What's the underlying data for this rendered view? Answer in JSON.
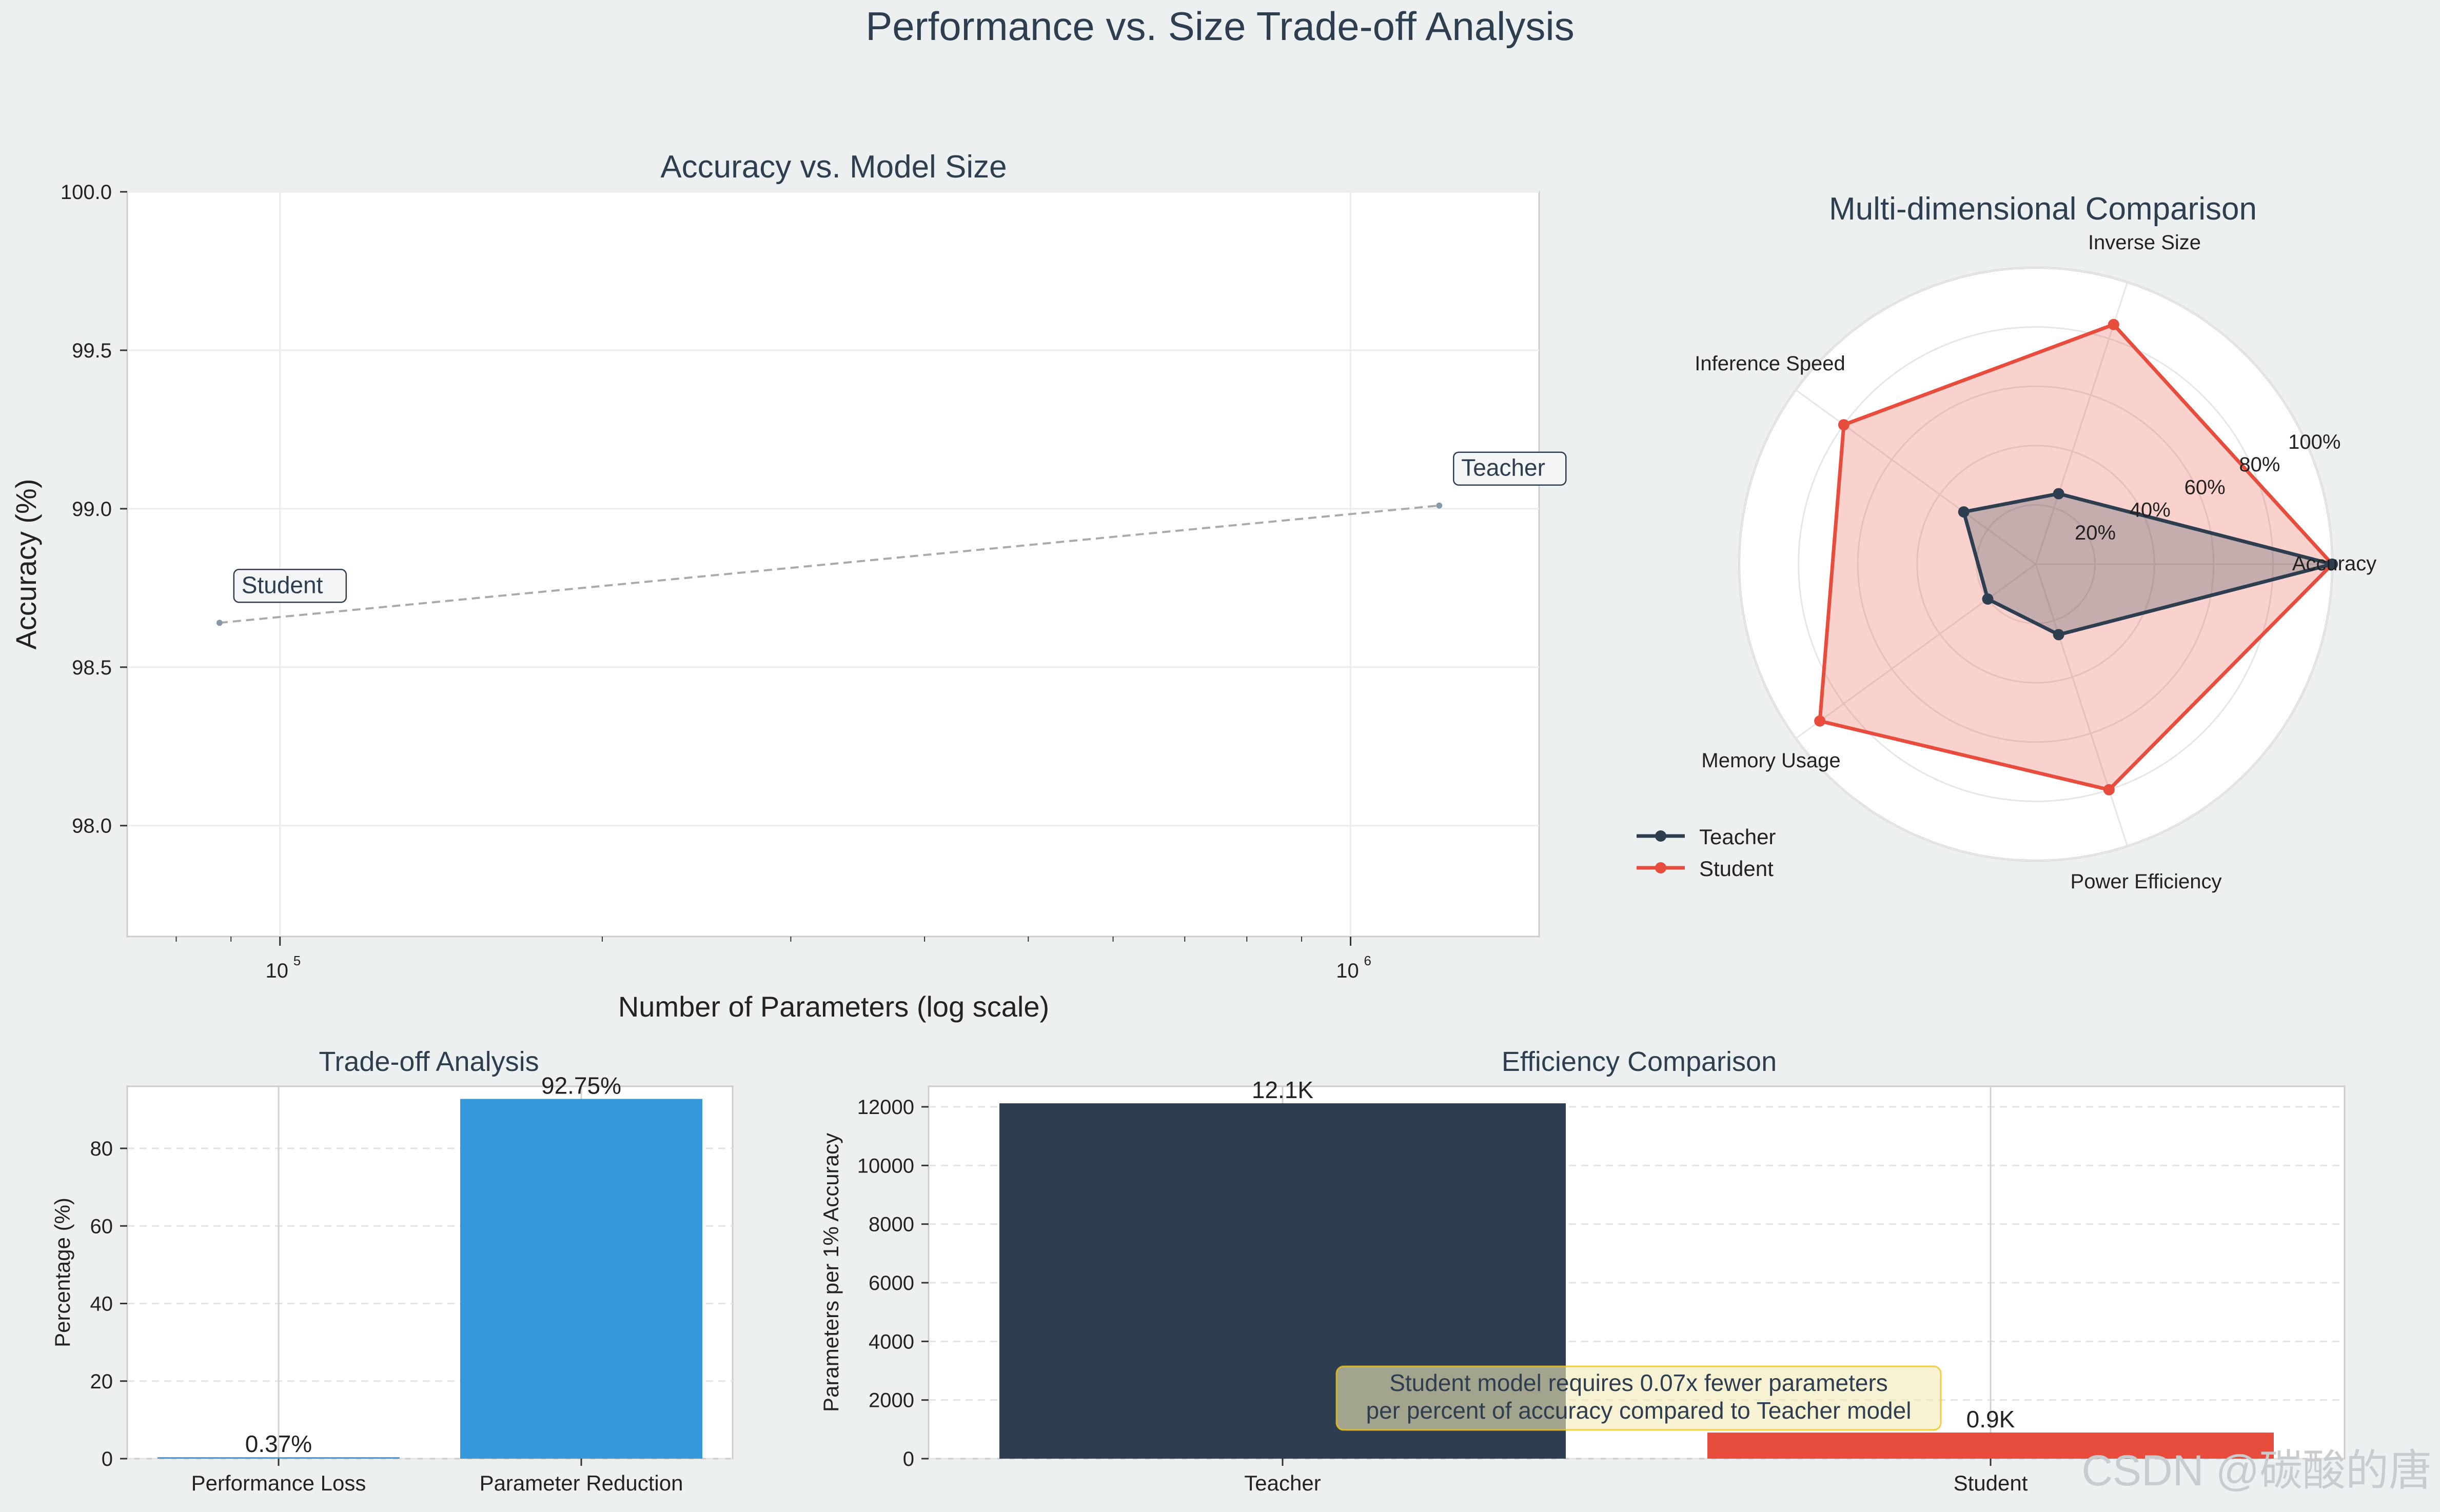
{
  "figure": {
    "title": "Performance vs. Size Trade-off Analysis",
    "background": "#ecf0f1",
    "watermark": "CSDN @碳酸的唐"
  },
  "colors": {
    "teacher": "#2c3e50",
    "student": "#e74c3c",
    "tradeoff_bar": "#3498db",
    "text": "#2c3e50",
    "annotation_bg": "#fdf3d6",
    "annotation_border": "#f1c40f"
  },
  "chart_data": [
    {
      "id": "accuracy_vs_size",
      "type": "scatter",
      "title": "Accuracy vs. Model Size",
      "xlabel": "Number of Parameters (log scale)",
      "ylabel": "Accuracy (%)",
      "xscale": "log",
      "xlim": [
        72000,
        1500000
      ],
      "ylim": [
        97.65,
        100.0
      ],
      "yticks": [
        98.0,
        98.5,
        99.0,
        99.5,
        100.0
      ],
      "ytick_labels": [
        "98.0",
        "98.5",
        "99.0",
        "99.5",
        "100.0"
      ],
      "xticks": [
        100000,
        1000000
      ],
      "xtick_labels": [
        "10",
        "10"
      ],
      "xtick_exponents": [
        "5",
        "6"
      ],
      "points": [
        {
          "label": "Teacher",
          "params": 1210000,
          "accuracy": 99.01
        },
        {
          "label": "Student",
          "params": 87800,
          "accuracy": 98.64
        }
      ],
      "connector": "dashed"
    },
    {
      "id": "radar",
      "type": "radar",
      "title": "Multi-dimensional Comparison",
      "axes": [
        "Accuracy",
        "Inverse Size",
        "Inference Speed",
        "Memory Usage",
        "Power Efficiency"
      ],
      "radial_ticks": [
        20,
        40,
        60,
        80,
        100
      ],
      "radial_tick_labels": [
        "20%",
        "40%",
        "60%",
        "80%",
        "100%"
      ],
      "series": [
        {
          "name": "Teacher",
          "values": [
            100,
            25,
            30,
            20,
            25
          ]
        },
        {
          "name": "Student",
          "values": [
            100,
            85,
            80,
            90,
            80
          ]
        }
      ],
      "legend": [
        "Teacher",
        "Student"
      ],
      "legend_position": "lower-left"
    },
    {
      "id": "tradeoff",
      "type": "bar",
      "title": "Trade-off Analysis",
      "ylabel": "Percentage (%)",
      "categories": [
        "Performance Loss",
        "Parameter Reduction"
      ],
      "values": [
        0.37,
        92.75
      ],
      "value_labels": [
        "0.37%",
        "92.75%"
      ],
      "ylim": [
        0,
        96
      ],
      "yticks": [
        0,
        20,
        40,
        60,
        80
      ],
      "ytick_labels": [
        "0",
        "20",
        "40",
        "60",
        "80"
      ]
    },
    {
      "id": "efficiency",
      "type": "bar",
      "title": "Efficiency Comparison",
      "ylabel": "Parameters per 1% Accuracy",
      "categories": [
        "Teacher",
        "Student"
      ],
      "values": [
        12120,
        890
      ],
      "value_labels": [
        "12.1K",
        "0.9K"
      ],
      "ylim": [
        0,
        12700
      ],
      "yticks": [
        0,
        2000,
        4000,
        6000,
        8000,
        10000,
        12000
      ],
      "ytick_labels": [
        "0",
        "2000",
        "4000",
        "6000",
        "8000",
        "10000",
        "12000"
      ],
      "annotation": [
        "Student model requires 0.07x fewer parameters",
        "per percent of accuracy compared to Teacher model"
      ]
    }
  ]
}
